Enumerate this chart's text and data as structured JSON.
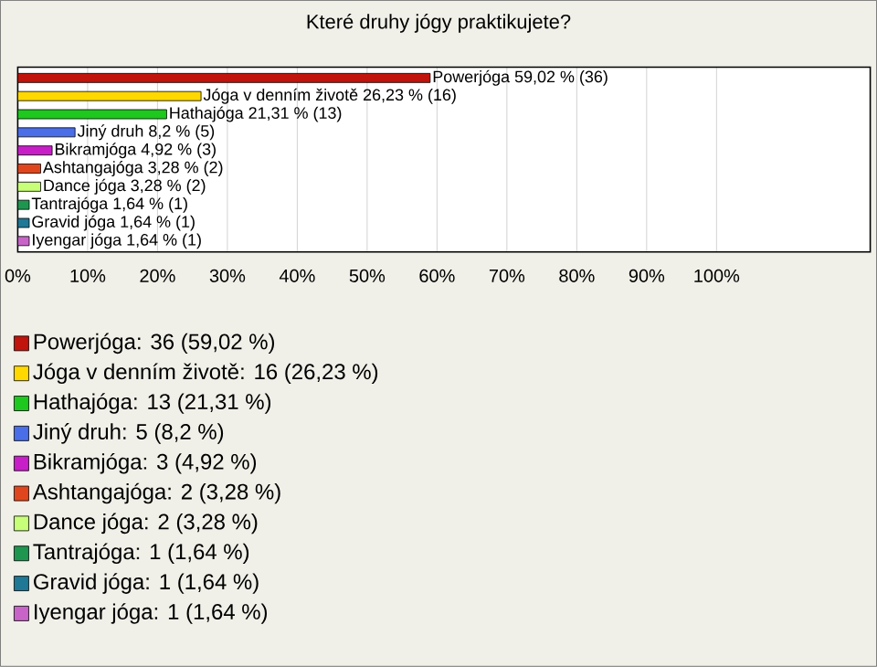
{
  "chart_data": {
    "type": "bar",
    "orientation": "horizontal",
    "title": "Které druhy jógy praktikujete?",
    "categories": [
      null,
      null,
      null,
      null,
      null,
      null,
      null,
      null,
      null,
      null
    ],
    "values": [
      59.02,
      26.23,
      21.31,
      8.2,
      4.92,
      3.28,
      3.28,
      1.64,
      1.64,
      1.64
    ],
    "value_labels": [
      "Powerjóga 59,02 % (36)",
      "Jóga v denním životě 26,23 % (16)",
      "Hathajóga 21,31 % (13)",
      "Jiný druh 8,2 % (5)",
      "Bikramjóga 4,92 % (3)",
      "Ashtangajóga 3,28 % (2)",
      "Dance jóga 3,28 % (2)",
      "Tantrajóga 1,64 % (1)",
      "Gravid jóga 1,64 % (1)",
      "Iyengar jóga 1,64 % (1)"
    ],
    "colors": [
      "#c0140c",
      "#ffd800",
      "#1ec81e",
      "#4a6ee8",
      "#c81ec8",
      "#e0461e",
      "#c8ff78",
      "#1e9650",
      "#1e7896",
      "#c864c8"
    ],
    "xlim": [
      0,
      122
    ],
    "xticks": [
      {
        "value": 0,
        "label": "0%"
      },
      {
        "value": 10,
        "label": "10%"
      },
      {
        "value": 20,
        "label": "20%"
      },
      {
        "value": 30,
        "label": "30%"
      },
      {
        "value": 40,
        "label": "40%"
      },
      {
        "value": 50,
        "label": "50%"
      },
      {
        "value": 60,
        "label": "60%"
      },
      {
        "value": 70,
        "label": "70%"
      },
      {
        "value": 80,
        "label": "80%"
      },
      {
        "value": 90,
        "label": "90%"
      },
      {
        "value": 100,
        "label": "100%"
      }
    ],
    "grid": "x",
    "annotations": [
      "Powerjóga: 36 (59,02 %)",
      "Jóga v denním životě: 16 (26,23 %)",
      "Hathajóga: 13 (21,31 %)",
      "Jiný druh: 5 (8,2 %)",
      "Bikramjóga: 3 (4,92 %)",
      "Ashtangajóga: 2 (3,28 %)",
      "Dance jóga: 2 (3,28 %)",
      "Tantrajóga: 1 (1,64 %)",
      "Gravid jóga: 1 (1,64 %)",
      "Iyengar jóga: 1 (1,64 %)"
    ]
  }
}
